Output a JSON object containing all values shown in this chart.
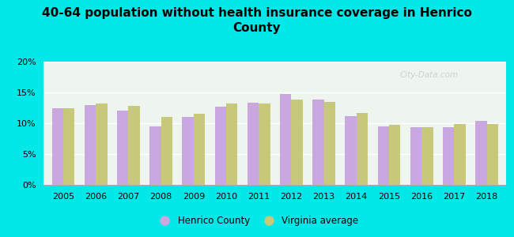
{
  "title": "40-64 population without health insurance coverage in Henrico\nCounty",
  "years": [
    2005,
    2006,
    2007,
    2008,
    2009,
    2010,
    2011,
    2012,
    2013,
    2014,
    2015,
    2016,
    2017,
    2018
  ],
  "henrico": [
    12.5,
    12.9,
    12.0,
    9.5,
    11.0,
    12.7,
    13.3,
    14.8,
    13.8,
    11.1,
    9.5,
    9.3,
    9.4,
    10.4
  ],
  "virginia": [
    12.4,
    13.2,
    12.8,
    11.0,
    11.5,
    13.2,
    13.2,
    13.8,
    13.5,
    11.7,
    9.8,
    9.4,
    9.9,
    9.9
  ],
  "henrico_color": "#c9a8e0",
  "virginia_color": "#c8c87a",
  "background_outer": "#00e8e8",
  "background_inner": "#eef5ee",
  "title_fontsize": 11,
  "title_fontweight": "bold",
  "ylim": [
    0,
    20
  ],
  "yticks": [
    0,
    5,
    10,
    15,
    20
  ],
  "ytick_labels": [
    "0%",
    "5%",
    "10%",
    "15%",
    "20%"
  ],
  "legend_henrico": "Henrico County",
  "legend_virginia": "Virginia average",
  "bar_width": 0.35,
  "watermark": "City-Data.com"
}
